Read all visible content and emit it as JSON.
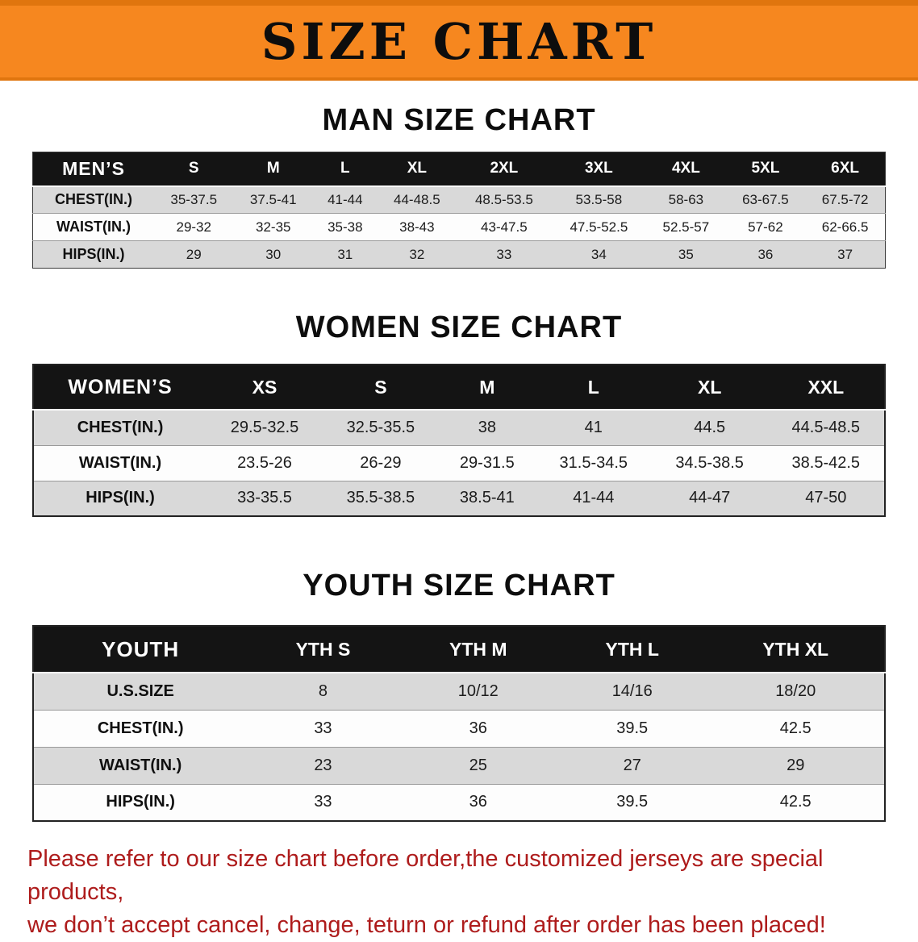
{
  "colors": {
    "orange": "#f6871f",
    "orange_dark": "#e0750e",
    "header_bg": "#141414",
    "row_gray": "#d9d9d9",
    "red": "#ae1c1c"
  },
  "banner": {
    "title": "SIZE CHART"
  },
  "sections": [
    {
      "id": "men",
      "heading": "MAN SIZE CHART",
      "table": {
        "header": [
          "MEN’S",
          "S",
          "M",
          "L",
          "XL",
          "2XL",
          "3XL",
          "4XL",
          "5XL",
          "6XL"
        ],
        "rows": [
          {
            "label": "CHEST(IN.)",
            "values": [
              "35-37.5",
              "37.5-41",
              "41-44",
              "44-48.5",
              "48.5-53.5",
              "53.5-58",
              "58-63",
              "63-67.5",
              "67.5-72"
            ]
          },
          {
            "label": "WAIST(IN.)",
            "values": [
              "29-32",
              "32-35",
              "35-38",
              "38-43",
              "43-47.5",
              "47.5-52.5",
              "52.5-57",
              "57-62",
              "62-66.5"
            ]
          },
          {
            "label": "HIPS(IN.)",
            "values": [
              "29",
              "30",
              "31",
              "32",
              "33",
              "34",
              "35",
              "36",
              "37"
            ]
          }
        ]
      }
    },
    {
      "id": "women",
      "heading": "WOMEN SIZE CHART",
      "table": {
        "header": [
          "WOMEN’S",
          "XS",
          "S",
          "M",
          "L",
          "XL",
          "XXL"
        ],
        "rows": [
          {
            "label": "CHEST(IN.)",
            "values": [
              "29.5-32.5",
              "32.5-35.5",
              "38",
              "41",
              "44.5",
              "44.5-48.5"
            ]
          },
          {
            "label": "WAIST(IN.)",
            "values": [
              "23.5-26",
              "26-29",
              "29-31.5",
              "31.5-34.5",
              "34.5-38.5",
              "38.5-42.5"
            ]
          },
          {
            "label": "HIPS(IN.)",
            "values": [
              "33-35.5",
              "35.5-38.5",
              "38.5-41",
              "41-44",
              "44-47",
              "47-50"
            ]
          }
        ]
      }
    },
    {
      "id": "youth",
      "heading": "YOUTH SIZE CHART",
      "table": {
        "header": [
          "YOUTH",
          "YTH S",
          "YTH M",
          "YTH L",
          "YTH XL"
        ],
        "rows": [
          {
            "label": "U.S.SIZE",
            "values": [
              "8",
              "10/12",
              "14/16",
              "18/20"
            ]
          },
          {
            "label": "CHEST(IN.)",
            "values": [
              "33",
              "36",
              "39.5",
              "42.5"
            ]
          },
          {
            "label": "WAIST(IN.)",
            "values": [
              "23",
              "25",
              "27",
              "29"
            ]
          },
          {
            "label": "HIPS(IN.)",
            "values": [
              "33",
              "36",
              "39.5",
              "42.5"
            ]
          }
        ]
      }
    }
  ],
  "disclaimer": {
    "line1": "Please refer to our size chart before order,the customized jerseys are special products,",
    "line2": "we don’t accept cancel, change, teturn or refund after order has been placed!"
  }
}
